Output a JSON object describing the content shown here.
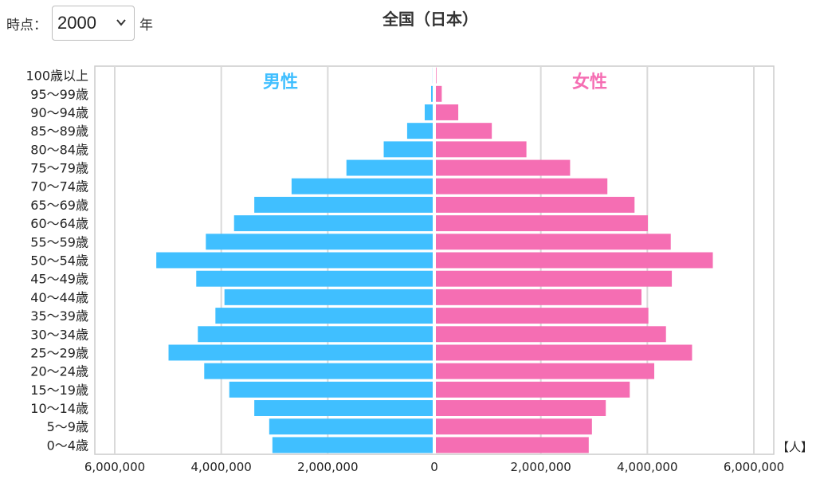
{
  "header": {
    "time_label": "時点：",
    "year_value": "2000",
    "year_suffix": "年",
    "title": "全国（日本）"
  },
  "colors": {
    "male": "#40BFFF",
    "female": "#F56EB3",
    "grid": "#d9d9d9",
    "frame": "#cccccc"
  },
  "icons": {
    "dropdown": "chevron-down-icon"
  },
  "chart_data": {
    "type": "bar",
    "orientation": "horizontal",
    "subtype": "population-pyramid",
    "title": "全国（日本）",
    "unit_label": "【人】",
    "male_label": "男性",
    "female_label": "女性",
    "xlim": [
      -6000000,
      6000000
    ],
    "x_ticks": [
      "6,000,000",
      "4,000,000",
      "2,000,000",
      "0",
      "2,000,000",
      "4,000,000",
      "6,000,000"
    ],
    "grid": true,
    "categories": [
      "100歳以上",
      "95〜99歳",
      "90〜94歳",
      "85〜89歳",
      "80〜84歳",
      "75〜79歳",
      "70〜74歳",
      "65〜69歳",
      "60〜64歳",
      "55〜59歳",
      "50〜54歳",
      "45〜49歳",
      "40〜44歳",
      "35〜39歳",
      "30〜34歳",
      "25〜29歳",
      "20〜24歳",
      "15〜19歳",
      "10〜14歳",
      "5〜9歳",
      "0〜4歳"
    ],
    "series": [
      {
        "name": "男性",
        "values": [
          2000,
          30000,
          150000,
          480000,
          920000,
          1620000,
          2650000,
          3350000,
          3730000,
          4260000,
          5190000,
          4440000,
          3910000,
          4080000,
          4410000,
          4960000,
          4290000,
          3820000,
          3350000,
          3070000,
          3010000
        ]
      },
      {
        "name": "女性",
        "values": [
          11000,
          110000,
          420000,
          1050000,
          1700000,
          2520000,
          3220000,
          3730000,
          3980000,
          4410000,
          5200000,
          4430000,
          3860000,
          3990000,
          4320000,
          4810000,
          4100000,
          3640000,
          3190000,
          2930000,
          2870000
        ]
      }
    ]
  }
}
